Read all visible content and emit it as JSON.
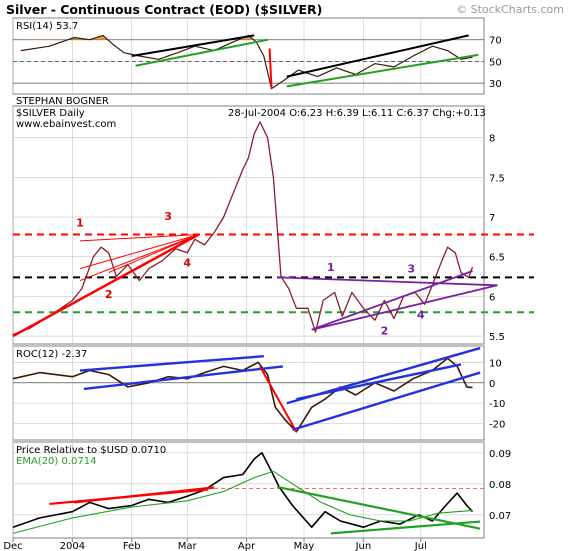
{
  "header": {
    "title": "Silver - Continuous Contract (EOD) ($SILVER)",
    "watermark": "© StockCharts.com"
  },
  "chart_data": [
    {
      "type": "line",
      "panel": "rsi",
      "label": "RSI(14)",
      "value_text": "53.7",
      "ylim": [
        20,
        90
      ],
      "y_ticks": [
        70,
        50,
        30
      ],
      "reference_lines": [
        70,
        50,
        30
      ],
      "x": [
        "2003-12-05",
        "2003-12-20",
        "2004-01-02",
        "2004-01-10",
        "2004-01-17",
        "2004-01-22",
        "2004-01-28",
        "2004-02-05",
        "2004-02-15",
        "2004-02-25",
        "2004-03-05",
        "2004-03-15",
        "2004-03-25",
        "2004-04-02",
        "2004-04-06",
        "2004-04-10",
        "2004-04-14",
        "2004-04-20",
        "2004-04-28",
        "2004-05-08",
        "2004-05-18",
        "2004-05-28",
        "2004-06-07",
        "2004-06-17",
        "2004-06-27",
        "2004-07-07",
        "2004-07-15",
        "2004-07-22",
        "2004-07-28"
      ],
      "values": [
        60,
        64,
        72,
        70,
        74,
        66,
        58,
        55,
        52,
        58,
        64,
        60,
        68,
        74,
        68,
        55,
        25,
        32,
        42,
        36,
        44,
        38,
        48,
        45,
        55,
        64,
        60,
        52,
        54
      ],
      "fill_above": 70,
      "fill_color": "#f0a030",
      "trendlines": [
        {
          "color": "#000000",
          "from": [
            "2004-02-01",
            55
          ],
          "to": [
            "2004-04-05",
            74
          ]
        },
        {
          "color": "#22a022",
          "from": [
            "2004-02-03",
            46
          ],
          "to": [
            "2004-04-12",
            70
          ]
        },
        {
          "color": "#ff0000",
          "from": [
            "2004-04-13",
            62
          ],
          "to": [
            "2004-04-14",
            26
          ]
        },
        {
          "color": "#000000",
          "from": [
            "2004-04-22",
            36
          ],
          "to": [
            "2004-07-26",
            74
          ]
        },
        {
          "color": "#22a022",
          "from": [
            "2004-04-22",
            27
          ],
          "to": [
            "2004-07-31",
            56
          ]
        }
      ]
    },
    {
      "type": "line",
      "panel": "price",
      "source_note": "STEPHAN BOGNER",
      "label": "$SILVER Daily",
      "site": "www.ebainvest.com",
      "quote": "28-Jul-2004 O:6.23 H:6.39 L:6.11 C:6.37 Chg:+0.13",
      "ylim": [
        5.4,
        8.4
      ],
      "y_ticks": [
        8.0,
        7.5,
        7.0,
        6.5,
        6.0,
        5.5
      ],
      "x": [
        "2003-12-01",
        "2003-12-10",
        "2003-12-20",
        "2004-01-01",
        "2004-01-06",
        "2004-01-12",
        "2004-01-16",
        "2004-01-20",
        "2004-01-24",
        "2004-01-30",
        "2004-02-05",
        "2004-02-10",
        "2004-02-17",
        "2004-02-24",
        "2004-03-01",
        "2004-03-05",
        "2004-03-10",
        "2004-03-15",
        "2004-03-20",
        "2004-03-25",
        "2004-03-30",
        "2004-04-02",
        "2004-04-05",
        "2004-04-08",
        "2004-04-12",
        "2004-04-15",
        "2004-04-19",
        "2004-04-23",
        "2004-04-27",
        "2004-05-03",
        "2004-05-07",
        "2004-05-11",
        "2004-05-17",
        "2004-05-21",
        "2004-05-26",
        "2004-06-01",
        "2004-06-07",
        "2004-06-12",
        "2004-06-17",
        "2004-06-22",
        "2004-06-28",
        "2004-07-03",
        "2004-07-08",
        "2004-07-12",
        "2004-07-15",
        "2004-07-19",
        "2004-07-22",
        "2004-07-26",
        "2004-07-28"
      ],
      "values": [
        5.52,
        5.6,
        5.75,
        5.95,
        6.1,
        6.5,
        6.62,
        6.55,
        6.25,
        6.4,
        6.2,
        6.35,
        6.45,
        6.6,
        6.55,
        6.72,
        6.65,
        6.8,
        7.0,
        7.3,
        7.6,
        7.75,
        8.05,
        8.2,
        8.0,
        7.5,
        6.25,
        6.1,
        5.85,
        5.85,
        5.55,
        5.95,
        6.05,
        5.75,
        6.05,
        5.85,
        5.7,
        5.95,
        5.72,
        6.0,
        6.05,
        5.9,
        6.2,
        6.45,
        6.62,
        6.55,
        6.3,
        6.24,
        6.37
      ],
      "horizontal_lines": [
        {
          "value": 6.78,
          "color": "#ff0000",
          "style": "dashed"
        },
        {
          "value": 6.24,
          "color": "#000000",
          "style": "dashed"
        },
        {
          "value": 5.8,
          "color": "#22a022",
          "style": "dashed"
        }
      ],
      "trendlines": [
        {
          "color": "#ff0000",
          "from": [
            "2003-12-01",
            5.5
          ],
          "to": [
            "2004-03-07",
            6.78
          ]
        },
        {
          "color": "#ff0000",
          "from": [
            "2004-01-05",
            6.7
          ],
          "to": [
            "2004-03-07",
            6.78
          ]
        },
        {
          "color": "#ff0000",
          "from": [
            "2004-01-05",
            6.35
          ],
          "to": [
            "2004-03-07",
            6.78
          ]
        },
        {
          "color": "#ff0000",
          "from": [
            "2004-01-05",
            6.2
          ],
          "to": [
            "2004-03-07",
            6.78
          ]
        },
        {
          "color": "#ff0000",
          "from": [
            "2004-01-20",
            6.3
          ],
          "to": [
            "2004-03-07",
            6.78
          ]
        },
        {
          "color": "#7b1fa2",
          "from": [
            "2004-04-17",
            6.24
          ],
          "to": [
            "2004-08-10",
            6.14
          ]
        },
        {
          "color": "#7b1fa2",
          "from": [
            "2004-05-05",
            5.58
          ],
          "to": [
            "2004-08-10",
            6.14
          ]
        },
        {
          "color": "#7b1fa2",
          "from": [
            "2004-05-05",
            5.58
          ],
          "to": [
            "2004-07-28",
            6.32
          ]
        }
      ],
      "annotations": [
        {
          "text": "1",
          "x": "2004-01-05",
          "y": 6.88,
          "color": "#dd0000"
        },
        {
          "text": "2",
          "x": "2004-01-20",
          "y": 5.98,
          "color": "#dd0000"
        },
        {
          "text": "3",
          "x": "2004-02-20",
          "y": 6.96,
          "color": "#dd0000"
        },
        {
          "text": "4",
          "x": "2004-03-01",
          "y": 6.38,
          "color": "#dd0000"
        },
        {
          "text": "1",
          "x": "2004-05-15",
          "y": 6.32,
          "color": "#7b1fa2"
        },
        {
          "text": "2",
          "x": "2004-06-12",
          "y": 5.52,
          "color": "#7b1fa2"
        },
        {
          "text": "3",
          "x": "2004-06-26",
          "y": 6.3,
          "color": "#7b1fa2"
        },
        {
          "text": "4",
          "x": "2004-07-01",
          "y": 5.72,
          "color": "#7b1fa2"
        }
      ]
    },
    {
      "type": "line",
      "panel": "roc",
      "label": "ROC(12)",
      "value_text": "-2.37",
      "ylim": [
        -28,
        18
      ],
      "y_ticks": [
        10,
        0,
        -10,
        -20
      ],
      "x": [
        "2003-12-01",
        "2003-12-15",
        "2004-01-01",
        "2004-01-10",
        "2004-01-20",
        "2004-01-30",
        "2004-02-10",
        "2004-02-20",
        "2004-03-01",
        "2004-03-10",
        "2004-03-20",
        "2004-03-30",
        "2004-04-07",
        "2004-04-12",
        "2004-04-16",
        "2004-04-21",
        "2004-04-27",
        "2004-05-05",
        "2004-05-12",
        "2004-05-20",
        "2004-05-28",
        "2004-06-07",
        "2004-06-17",
        "2004-06-27",
        "2004-07-07",
        "2004-07-15",
        "2004-07-20",
        "2004-07-25",
        "2004-07-28"
      ],
      "values": [
        2,
        5,
        3,
        6,
        4,
        -2,
        0,
        3,
        2,
        5,
        8,
        6,
        10,
        4,
        -12,
        -18,
        -24,
        -12,
        -8,
        -2,
        -6,
        0,
        -4,
        2,
        6,
        12,
        8,
        -2,
        -2.37
      ],
      "reference_lines": [
        0
      ],
      "trendlines": [
        {
          "color": "#2233dd",
          "from": [
            "2004-01-05",
            6
          ],
          "to": [
            "2004-04-10",
            13
          ]
        },
        {
          "color": "#2233dd",
          "from": [
            "2004-01-07",
            -3
          ],
          "to": [
            "2004-04-20",
            8
          ]
        },
        {
          "color": "#ff0000",
          "from": [
            "2004-04-08",
            8
          ],
          "to": [
            "2004-04-27",
            -24
          ]
        },
        {
          "color": "#2233dd",
          "from": [
            "2004-04-22",
            -10
          ],
          "to": [
            "2004-08-01",
            17
          ]
        },
        {
          "color": "#2233dd",
          "from": [
            "2004-04-25",
            -23
          ],
          "to": [
            "2004-08-01",
            5
          ]
        },
        {
          "color": "#2233dd",
          "from": [
            "2004-04-27",
            -8
          ],
          "to": [
            "2004-07-22",
            9
          ]
        }
      ]
    },
    {
      "type": "line",
      "panel": "relative",
      "label": "Price Relative to $USD",
      "value_text": "0.0710",
      "ylim": [
        0.0625,
        0.0935
      ],
      "y_ticks": [
        0.09,
        0.08,
        0.07
      ],
      "series": [
        {
          "name": "Price Relative to $USD",
          "color": "#000000",
          "x": [
            "2003-12-01",
            "2003-12-15",
            "2004-01-01",
            "2004-01-10",
            "2004-01-20",
            "2004-02-01",
            "2004-02-10",
            "2004-02-20",
            "2004-03-01",
            "2004-03-10",
            "2004-03-20",
            "2004-03-30",
            "2004-04-05",
            "2004-04-09",
            "2004-04-14",
            "2004-04-18",
            "2004-04-25",
            "2004-05-05",
            "2004-05-12",
            "2004-05-20",
            "2004-06-01",
            "2004-06-10",
            "2004-06-20",
            "2004-06-30",
            "2004-07-07",
            "2004-07-14",
            "2004-07-20",
            "2004-07-25",
            "2004-07-28"
          ],
          "values": [
            0.066,
            0.069,
            0.071,
            0.074,
            0.072,
            0.073,
            0.075,
            0.074,
            0.076,
            0.078,
            0.082,
            0.083,
            0.088,
            0.09,
            0.084,
            0.079,
            0.073,
            0.066,
            0.071,
            0.068,
            0.066,
            0.068,
            0.067,
            0.07,
            0.068,
            0.073,
            0.077,
            0.073,
            0.071
          ]
        },
        {
          "name": "EMA(20)",
          "value_text": "0.0714",
          "color": "#22a022",
          "x": [
            "2003-12-01",
            "2004-01-01",
            "2004-02-01",
            "2004-03-01",
            "2004-03-20",
            "2004-04-05",
            "2004-04-15",
            "2004-04-25",
            "2004-05-10",
            "2004-05-25",
            "2004-06-10",
            "2004-06-25",
            "2004-07-10",
            "2004-07-28"
          ],
          "values": [
            0.064,
            0.069,
            0.0725,
            0.0745,
            0.0775,
            0.082,
            0.084,
            0.08,
            0.074,
            0.07,
            0.068,
            0.068,
            0.0705,
            0.0714
          ]
        }
      ],
      "horizontal_lines": [
        {
          "value": 0.0785,
          "color": "#ff6666",
          "style": "dashed"
        }
      ],
      "trendlines": [
        {
          "color": "#ff0000",
          "from": [
            "2003-12-20",
            0.0735
          ],
          "to": [
            "2004-03-12",
            0.0782
          ]
        },
        {
          "color": "#ff0000",
          "from": [
            "2004-01-02",
            0.074
          ],
          "to": [
            "2004-03-15",
            0.0788
          ]
        },
        {
          "color": "#22a022",
          "from": [
            "2004-04-17",
            0.079
          ],
          "to": [
            "2004-08-01",
            0.0655
          ]
        },
        {
          "color": "#22a022",
          "from": [
            "2004-05-15",
            0.064
          ],
          "to": [
            "2004-08-01",
            0.0678
          ]
        }
      ]
    }
  ],
  "x_axis": {
    "ticks": [
      {
        "date": "2003-12-01",
        "label": "Dec"
      },
      {
        "date": "2004-01-01",
        "label": "2004"
      },
      {
        "date": "2004-02-01",
        "label": "Feb"
      },
      {
        "date": "2004-03-01",
        "label": "Mar"
      },
      {
        "date": "2004-04-01",
        "label": "Apr"
      },
      {
        "date": "2004-05-01",
        "label": "May"
      },
      {
        "date": "2004-06-01",
        "label": "Jun"
      },
      {
        "date": "2004-07-01",
        "label": "Jul"
      }
    ],
    "range": [
      "2003-12-01",
      "2004-08-03"
    ]
  },
  "colors": {
    "price_line": "#8b1e2d",
    "indicator_line": "#3a1a0a",
    "grid": "#c8c8c8",
    "frame": "#808080",
    "title": "#000000"
  }
}
